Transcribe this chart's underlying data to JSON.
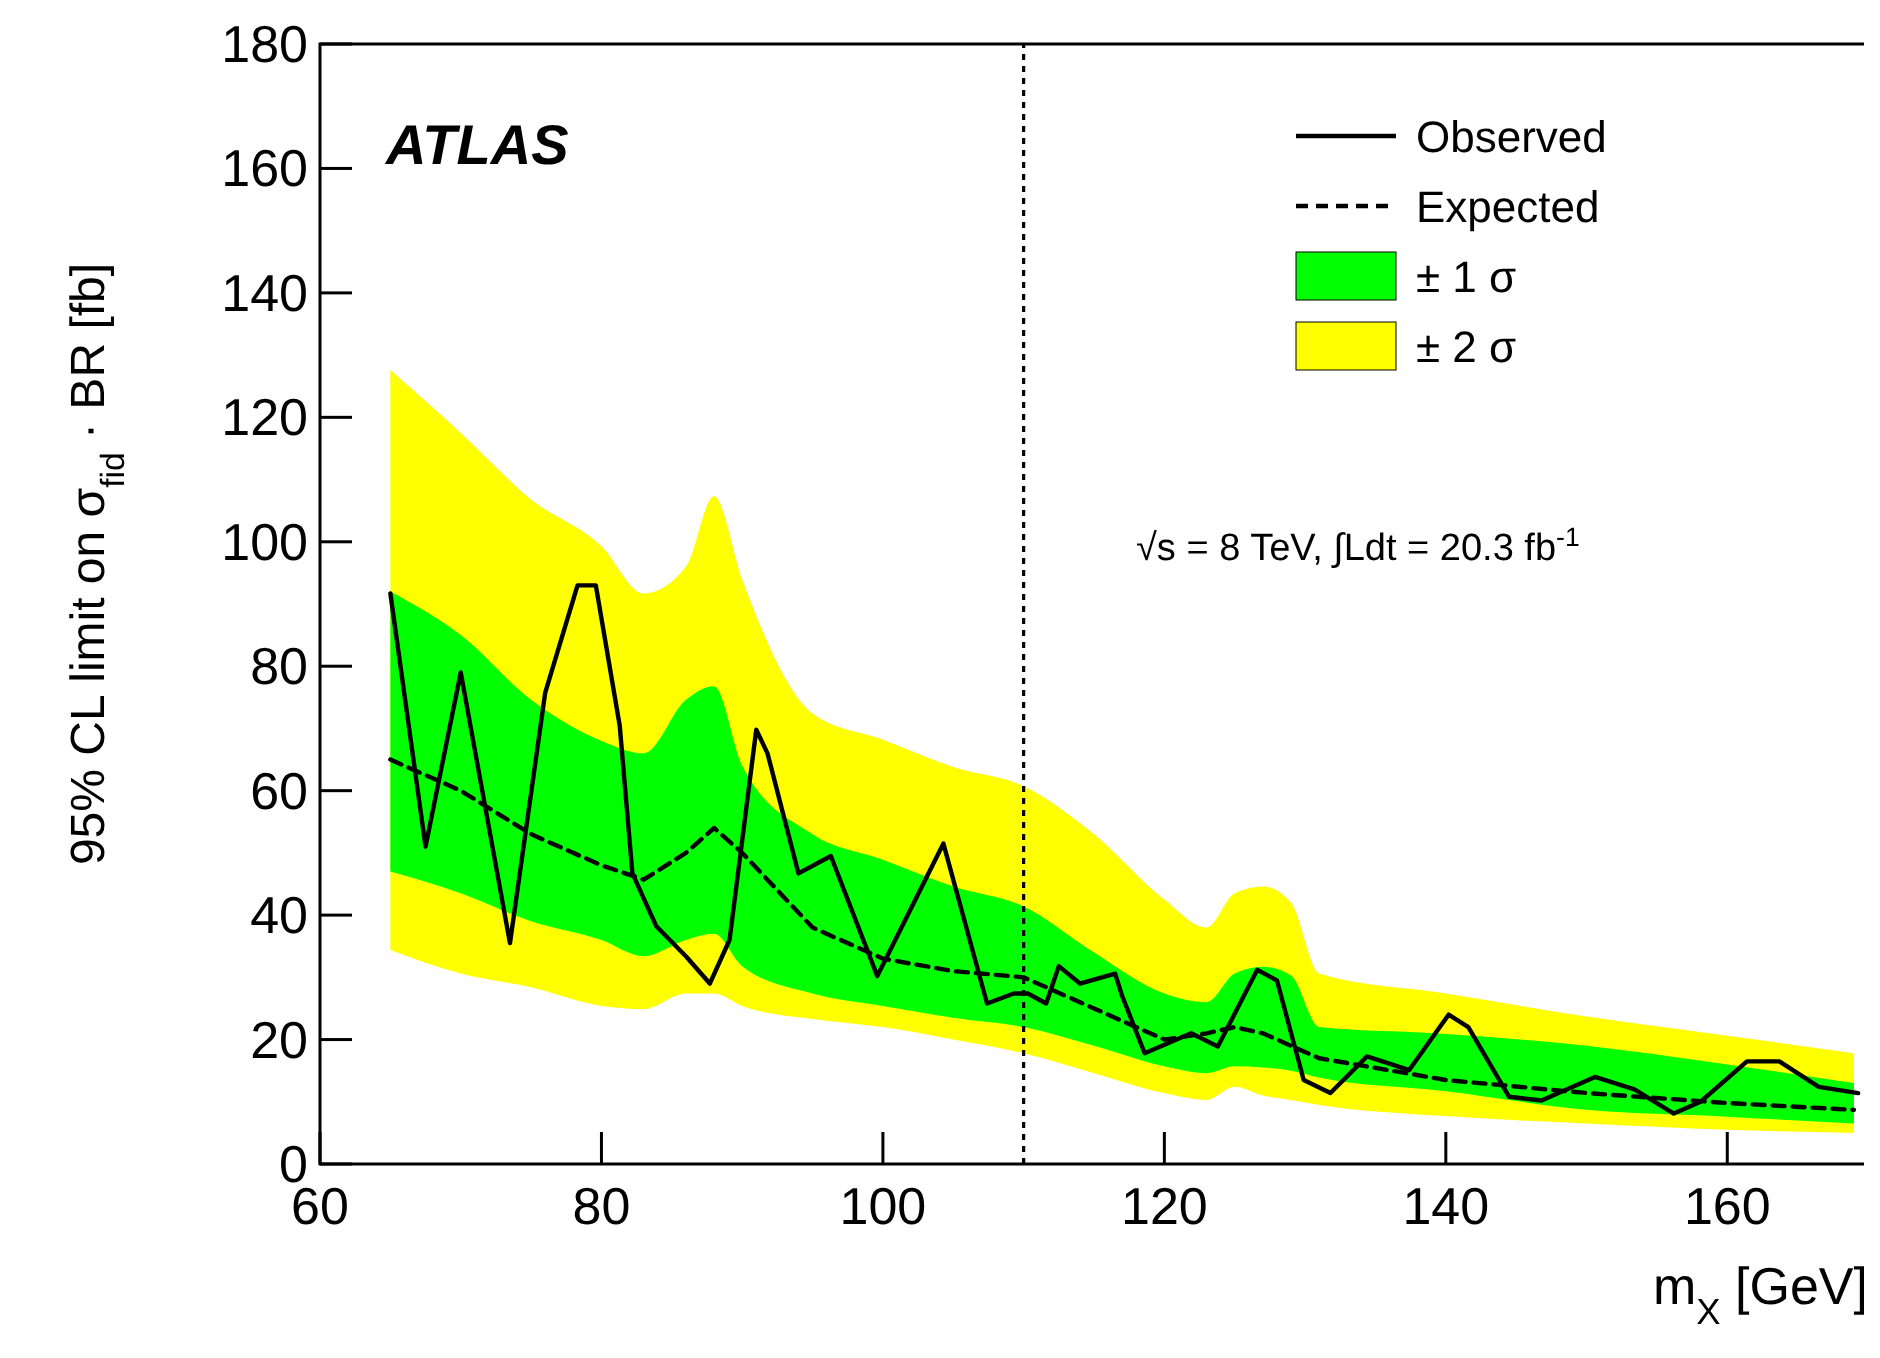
{
  "chart_data": {
    "type": "line",
    "xlabel": "m$_{X}$ [GeV]",
    "ylabel": "95% CL limit on σ$_{fid}$ · BR [fb]",
    "xlim": [
      60,
      170
    ],
    "xticks": [
      60,
      80,
      100,
      120,
      140,
      160
    ],
    "ylim": [
      0,
      180
    ],
    "yticks": [
      0,
      20,
      40,
      60,
      80,
      100,
      120,
      140,
      160,
      180
    ],
    "grid": false,
    "legend": "top right",
    "annotations": [
      "ATLAS",
      "√s = 8 TeV, ∫Ldt = 20.3 fb$^{-1}$"
    ],
    "ref_lines": [
      {
        "axis": "x",
        "value": 110,
        "label": null,
        "color": "#000000",
        "line_style": "dotted"
      }
    ],
    "series": [
      {
        "name": "Observed",
        "color": "#000000",
        "line_style": "solid",
        "x": [
          65,
          67.5,
          70,
          73.5,
          76,
          78.3,
          79.6,
          81.3,
          82.2,
          83.9,
          86,
          87.7,
          89.1,
          91,
          91.8,
          94,
          96.3,
          99.6,
          104.3,
          107.4,
          109.3,
          110.3,
          111.6,
          112.5,
          114,
          116.5,
          117,
          118.6,
          121.9,
          123.8,
          126.6,
          128,
          129.9,
          131.8,
          134.4,
          137.4,
          140.2,
          141.6,
          144.5,
          146.8,
          150.6,
          153.4,
          156.2,
          158.1,
          161.4,
          163.7,
          166.5,
          169.3
        ],
        "values": [
          91.7,
          51,
          79,
          35.5,
          75.7,
          93,
          93,
          70.4,
          46.7,
          38.2,
          33.4,
          29,
          36,
          69.8,
          66,
          46.7,
          49.5,
          30.2,
          51.5,
          25.8,
          27.4,
          27.4,
          25.8,
          31.8,
          29,
          30.6,
          27,
          17.8,
          21,
          18.9,
          31.2,
          29.5,
          13.5,
          11.4,
          17.3,
          15.1,
          24,
          22,
          10.8,
          10.2,
          14,
          12,
          8.1,
          10,
          16.5,
          16.5,
          12.4,
          11.4
        ]
      },
      {
        "name": "Expected",
        "color": "#000000",
        "line_style": "dashed",
        "x": [
          65,
          70,
          75,
          80,
          83,
          86,
          88,
          90,
          95,
          100,
          105,
          110,
          115,
          120,
          123,
          125,
          127,
          129,
          131,
          140,
          150,
          160,
          169
        ],
        "values": [
          65,
          60,
          53,
          48,
          45.7,
          50,
          54,
          50,
          38,
          33,
          31,
          30,
          25,
          20,
          21,
          22,
          21,
          19,
          17,
          13.5,
          11.4,
          9.8,
          8.7
        ]
      },
      {
        "name": "± 1 σ",
        "color": "#00ff00",
        "x": [
          65,
          70,
          75,
          80,
          83,
          86,
          88,
          90,
          95,
          100,
          105,
          110,
          115,
          120,
          123,
          125,
          127,
          129,
          131,
          140,
          150,
          160,
          169
        ],
        "values": [
          null,
          null,
          null,
          null,
          null,
          null,
          null,
          null,
          null,
          null,
          null,
          null,
          null,
          null,
          null,
          null,
          null,
          null,
          null,
          null,
          null,
          null,
          null
        ],
        "lower": [
          47,
          43.5,
          39,
          36,
          33.4,
          36,
          37,
          31.8,
          27.4,
          25.4,
          23.5,
          22,
          19,
          15.7,
          14.6,
          15.7,
          15.5,
          15,
          13.9,
          11.7,
          8.7,
          7.6,
          6.5
        ],
        "upper": [
          92,
          85,
          74.6,
          68,
          66,
          74.6,
          76.8,
          64,
          53,
          48.9,
          44.6,
          41.4,
          34,
          27.4,
          26,
          30.6,
          31.7,
          30.3,
          22,
          20.9,
          19,
          16,
          13
        ]
      },
      {
        "name": "± 2 σ",
        "color": "#ffff00",
        "x": [
          65,
          70,
          75,
          80,
          83,
          86,
          88,
          90,
          95,
          100,
          105,
          110,
          115,
          120,
          123,
          125,
          127,
          129,
          131,
          140,
          150,
          160,
          169
        ],
        "values": [
          null,
          null,
          null,
          null,
          null,
          null,
          null,
          null,
          null,
          null,
          null,
          null,
          null,
          null,
          null,
          null,
          null,
          null,
          null,
          null,
          null,
          null,
          null
        ],
        "lower": [
          34.4,
          30.6,
          28.4,
          25.4,
          24.9,
          27.4,
          27.4,
          25.4,
          23.3,
          22,
          20,
          17.8,
          14.6,
          11.4,
          10.3,
          12.4,
          11,
          10.3,
          9.5,
          7.7,
          6.5,
          5.5,
          5
        ],
        "upper": [
          127.6,
          117.5,
          106.8,
          99.3,
          91.7,
          96,
          107.3,
          93.9,
          72.4,
          68.2,
          63.8,
          60.7,
          53,
          42.5,
          38,
          43.5,
          44.6,
          42,
          30.6,
          27.4,
          23.7,
          20.6,
          17.8
        ]
      }
    ]
  }
}
